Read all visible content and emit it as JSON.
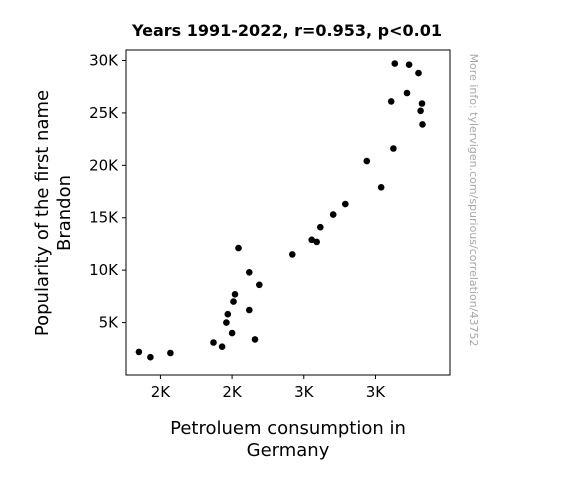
{
  "chart_data": {
    "type": "scatter",
    "title": "Years 1991-2022, r=0.953, p<0.01",
    "xlabel": [
      "Petroluem consumption in",
      "Germany"
    ],
    "ylabel": [
      "Popularity of the first name",
      "Brandon"
    ],
    "xlim": [
      1560,
      3820
    ],
    "ylim": [
      0,
      31000
    ],
    "xticks": [
      1800,
      2300,
      2800,
      3300
    ],
    "xtick_labels": [
      "2K",
      "2K",
      "3K",
      "3K"
    ],
    "yticks": [
      5000,
      10000,
      15000,
      20000,
      25000,
      30000
    ],
    "ytick_labels": [
      "5K",
      "10K",
      "15K",
      "20K",
      "25K",
      "30K"
    ],
    "grid": false,
    "marker_color": "#000000",
    "points": [
      {
        "x": 1650,
        "y": 2200
      },
      {
        "x": 1730,
        "y": 1700
      },
      {
        "x": 1870,
        "y": 2100
      },
      {
        "x": 2170,
        "y": 3100
      },
      {
        "x": 2230,
        "y": 2700
      },
      {
        "x": 2260,
        "y": 5000
      },
      {
        "x": 2270,
        "y": 5800
      },
      {
        "x": 2300,
        "y": 4000
      },
      {
        "x": 2310,
        "y": 7000
      },
      {
        "x": 2320,
        "y": 7700
      },
      {
        "x": 2345,
        "y": 12100
      },
      {
        "x": 2420,
        "y": 9800
      },
      {
        "x": 2420,
        "y": 6200
      },
      {
        "x": 2460,
        "y": 3400
      },
      {
        "x": 2490,
        "y": 8600
      },
      {
        "x": 2720,
        "y": 11500
      },
      {
        "x": 2855,
        "y": 12900
      },
      {
        "x": 2890,
        "y": 12700
      },
      {
        "x": 2915,
        "y": 14100
      },
      {
        "x": 3005,
        "y": 15300
      },
      {
        "x": 3090,
        "y": 16300
      },
      {
        "x": 3240,
        "y": 20400
      },
      {
        "x": 3340,
        "y": 17900
      },
      {
        "x": 3410,
        "y": 26100
      },
      {
        "x": 3425,
        "y": 21600
      },
      {
        "x": 3435,
        "y": 29700
      },
      {
        "x": 3520,
        "y": 26900
      },
      {
        "x": 3535,
        "y": 29600
      },
      {
        "x": 3600,
        "y": 28800
      },
      {
        "x": 3615,
        "y": 25200
      },
      {
        "x": 3625,
        "y": 25900
      },
      {
        "x": 3628,
        "y": 23900
      }
    ]
  },
  "watermark": "More info: tylervigen.com/spurious/correlation/43752"
}
